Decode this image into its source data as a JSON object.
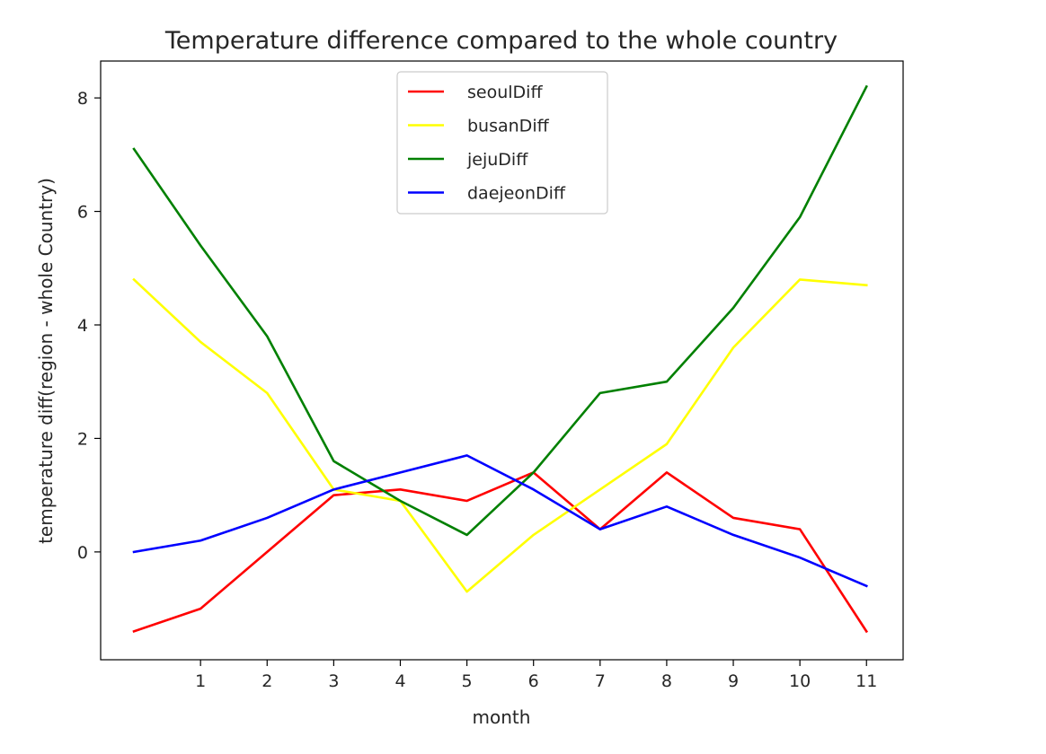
{
  "chart_data": {
    "type": "line",
    "title": "Temperature difference compared to the whole country",
    "xlabel": "month",
    "ylabel": "temperature diff(region - whole Country)",
    "x": [
      0,
      1,
      2,
      3,
      4,
      5,
      6,
      7,
      8,
      9,
      10,
      11
    ],
    "xticks": [
      1,
      2,
      3,
      4,
      5,
      6,
      7,
      8,
      9,
      10,
      11
    ],
    "yticks": [
      0,
      2,
      4,
      6,
      8
    ],
    "xlim": [
      -0.5,
      11.55
    ],
    "ylim": [
      -1.9,
      8.65
    ],
    "grid": false,
    "legend_position": "top-center",
    "series": [
      {
        "name": "seoulDiff",
        "color": "#ff0000",
        "values": [
          -1.4,
          -1.0,
          0.0,
          1.0,
          1.1,
          0.9,
          1.4,
          0.4,
          1.4,
          0.6,
          0.4,
          -1.4
        ]
      },
      {
        "name": "busanDiff",
        "color": "#ffff00",
        "values": [
          4.8,
          3.7,
          2.8,
          1.1,
          0.9,
          -0.7,
          0.3,
          1.1,
          1.9,
          3.6,
          4.8,
          4.7
        ]
      },
      {
        "name": "jejuDiff",
        "color": "#008000",
        "values": [
          7.1,
          5.4,
          3.8,
          1.6,
          0.9,
          0.3,
          1.4,
          2.8,
          3.0,
          4.3,
          5.9,
          8.2
        ]
      },
      {
        "name": "daejeonDiff",
        "color": "#0000ff",
        "values": [
          0.0,
          0.2,
          0.6,
          1.1,
          1.4,
          1.7,
          1.1,
          0.4,
          0.8,
          0.3,
          -0.1,
          -0.6
        ]
      }
    ]
  }
}
